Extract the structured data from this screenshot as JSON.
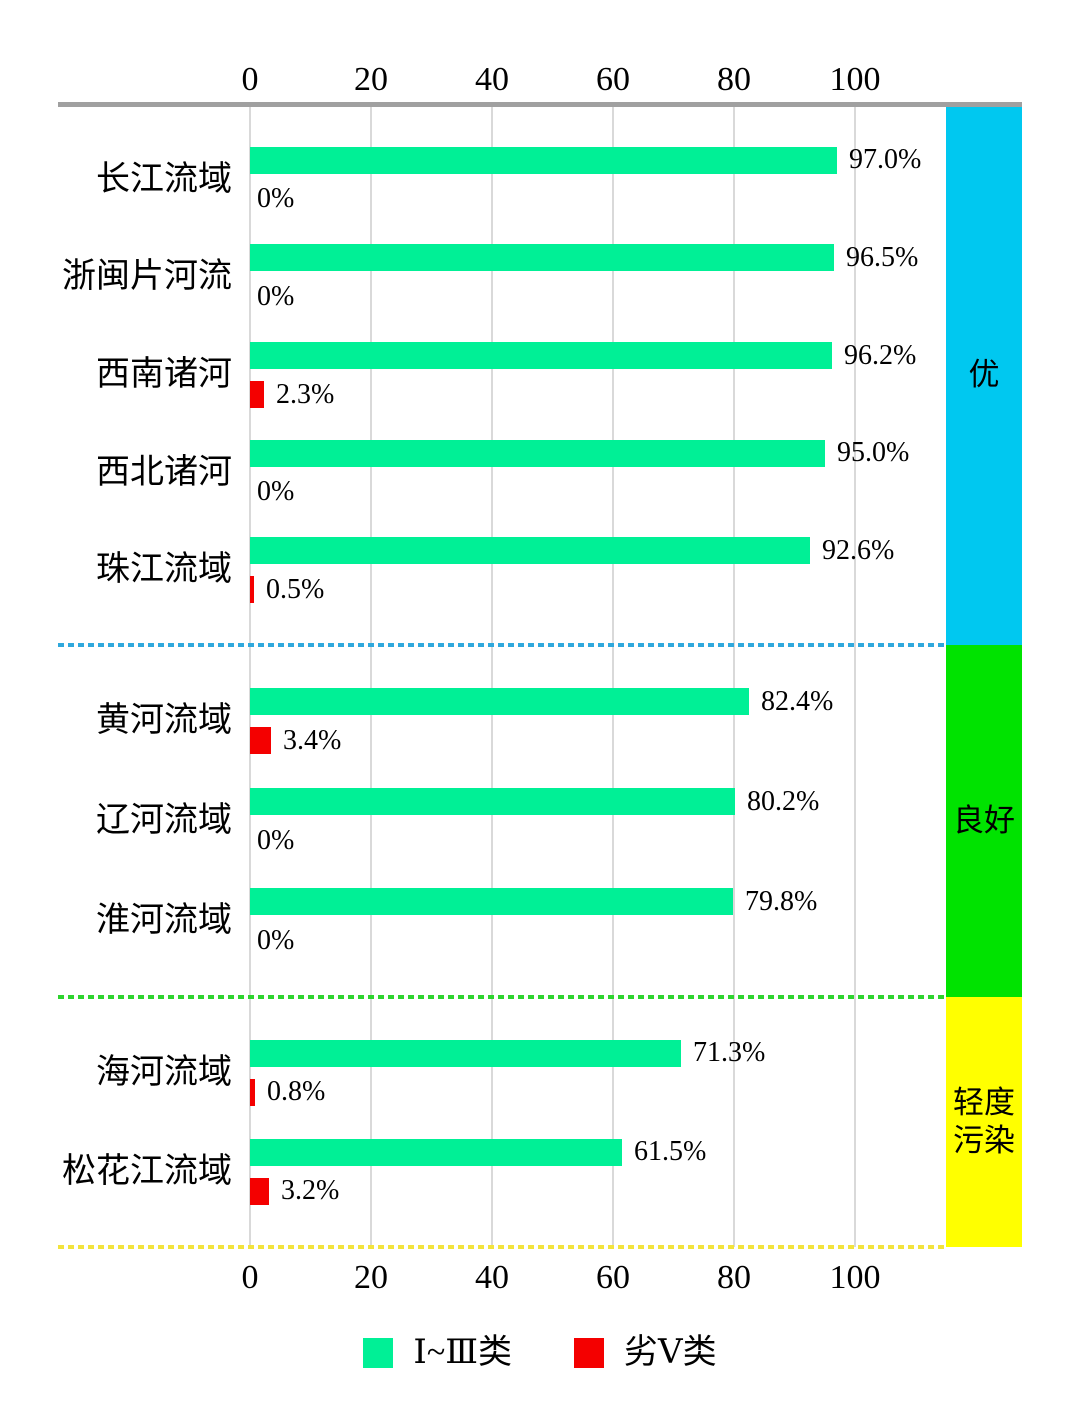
{
  "chart_data": {
    "type": "bar",
    "orientation": "horizontal",
    "grid": true,
    "value_axis": {
      "min": 0,
      "max": 100,
      "ticks": [
        0,
        20,
        40,
        60,
        80,
        100
      ],
      "tick_labels": [
        "0",
        "20",
        "40",
        "60",
        "80",
        "100"
      ],
      "position": "top and bottom"
    },
    "categories": [
      "长江流域",
      "浙闽片河流",
      "西南诸河",
      "西北诸河",
      "珠江流域",
      "黄河流域",
      "辽河流域",
      "淮河流域",
      "海河流域",
      "松花江流域"
    ],
    "series": [
      {
        "name": "Ⅰ~Ⅲ类",
        "color": "#00F096",
        "values": [
          97.0,
          96.5,
          96.2,
          95.0,
          92.6,
          82.4,
          80.2,
          79.8,
          71.3,
          61.5
        ],
        "labels": [
          "97.0%",
          "96.5%",
          "96.2%",
          "95.0%",
          "92.6%",
          "82.4%",
          "80.2%",
          "79.8%",
          "71.3%",
          "61.5%"
        ]
      },
      {
        "name": "劣Ⅴ类",
        "color": "#F40000",
        "values": [
          0,
          0,
          2.3,
          0,
          0.5,
          3.4,
          0,
          0,
          0.8,
          3.2
        ],
        "labels": [
          "0%",
          "0%",
          "2.3%",
          "0%",
          "0.5%",
          "3.4%",
          "0%",
          "0%",
          "0.8%",
          "3.2%"
        ]
      }
    ],
    "sections": [
      {
        "grade": "优",
        "band_color": "#00C8F0",
        "divider_color": "#2FA8DC",
        "row_indexes": [
          0,
          1,
          2,
          3,
          4
        ]
      },
      {
        "grade": "良好",
        "band_color": "#00E300",
        "divider_color": "#2ED32E",
        "row_indexes": [
          5,
          6,
          7
        ]
      },
      {
        "grade": "轻度污染",
        "band_color": "#FFFF00",
        "divider_color": "#F2E33C",
        "row_indexes": [
          8,
          9
        ]
      }
    ],
    "legend": [
      {
        "label": "Ⅰ~Ⅲ类",
        "color": "#00F096"
      },
      {
        "label": "劣Ⅴ类",
        "color": "#F40000"
      }
    ]
  }
}
